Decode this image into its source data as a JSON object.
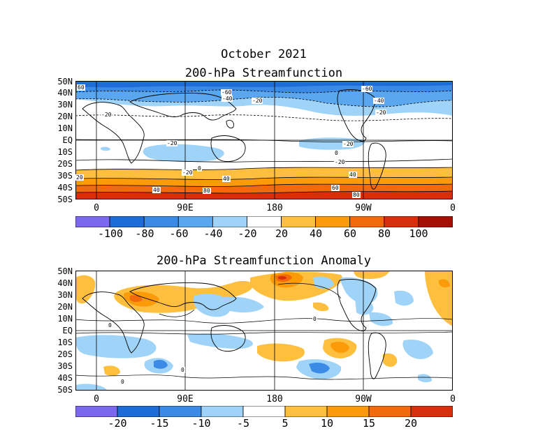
{
  "figure": {
    "title": "October 2021",
    "panel1_title": "200-hPa Streamfunction",
    "panel2_title": "200-hPa Streamfunction Anomaly"
  },
  "axes": {
    "lat_labels": [
      "50N",
      "40N",
      "30N",
      "20N",
      "10N",
      "EQ",
      "10S",
      "20S",
      "30S",
      "40S",
      "50S"
    ],
    "lon_labels": [
      "0",
      "90E",
      "180",
      "90W",
      "0"
    ]
  },
  "colorbar1": {
    "labels": [
      "-100",
      "-80",
      "-60",
      "-40",
      "-20",
      "20",
      "40",
      "60",
      "80",
      "100"
    ],
    "colors": [
      "#7b68ee",
      "#1e6cd8",
      "#3b8ae6",
      "#5aa7f0",
      "#9fd3f7",
      "#ffffff",
      "#fdbf3d",
      "#fc9b0a",
      "#f26a0c",
      "#d92e0c",
      "#a50f04"
    ]
  },
  "colorbar2": {
    "labels": [
      "-20",
      "-15",
      "-10",
      "-5",
      "5",
      "10",
      "15",
      "20"
    ],
    "colors": [
      "#7b68ee",
      "#1e6cd8",
      "#3b8ae6",
      "#9fd3f7",
      "#ffffff",
      "#fdbf3d",
      "#fc9b0a",
      "#f26a0c",
      "#d92e0c"
    ]
  },
  "contour_labels_panel1": [
    "60",
    "-60",
    "-40",
    "-20",
    "-20",
    "-60",
    "-40",
    "-20",
    "-20",
    "-20",
    "0",
    "0",
    "-20",
    "-20",
    "20",
    "40",
    "40",
    "40",
    "60",
    "80",
    "80"
  ],
  "contour_labels_panel2": [
    "0",
    "0",
    "0",
    "0"
  ]
}
